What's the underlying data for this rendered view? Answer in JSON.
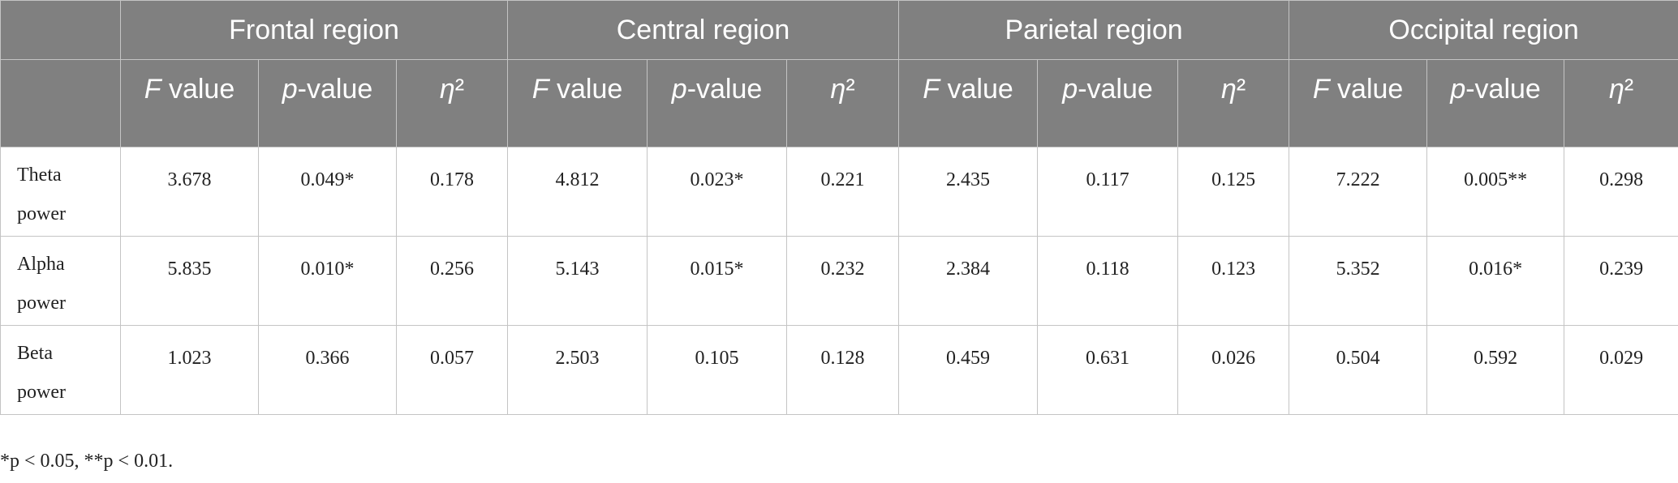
{
  "table": {
    "column_groups": [
      "Frontal region",
      "Central region",
      "Parietal region",
      "Occipital region"
    ],
    "subheaders": [
      "F value",
      "p-value",
      "η²",
      "F value",
      "p-value",
      "η²",
      "F value",
      "p-value",
      "η²",
      "F value",
      "p-value",
      "η²"
    ],
    "rows": [
      [
        "Theta power",
        "3.678",
        "0.049*",
        "0.178",
        "4.812",
        "0.023*",
        "0.221",
        "2.435",
        "0.117",
        "0.125",
        "7.222",
        "0.005**",
        "0.298"
      ],
      [
        "Alpha power",
        "5.835",
        "0.010*",
        "0.256",
        "5.143",
        "0.015*",
        "0.232",
        "2.384",
        "0.118",
        "0.123",
        "5.352",
        "0.016*",
        "0.239"
      ],
      [
        "Beta power",
        "1.023",
        "0.366",
        "0.057",
        "2.503",
        "0.105",
        "0.128",
        "0.459",
        "0.631",
        "0.026",
        "0.504",
        "0.592",
        "0.029"
      ]
    ],
    "footnote": "*p < 0.05, **p < 0.01."
  }
}
